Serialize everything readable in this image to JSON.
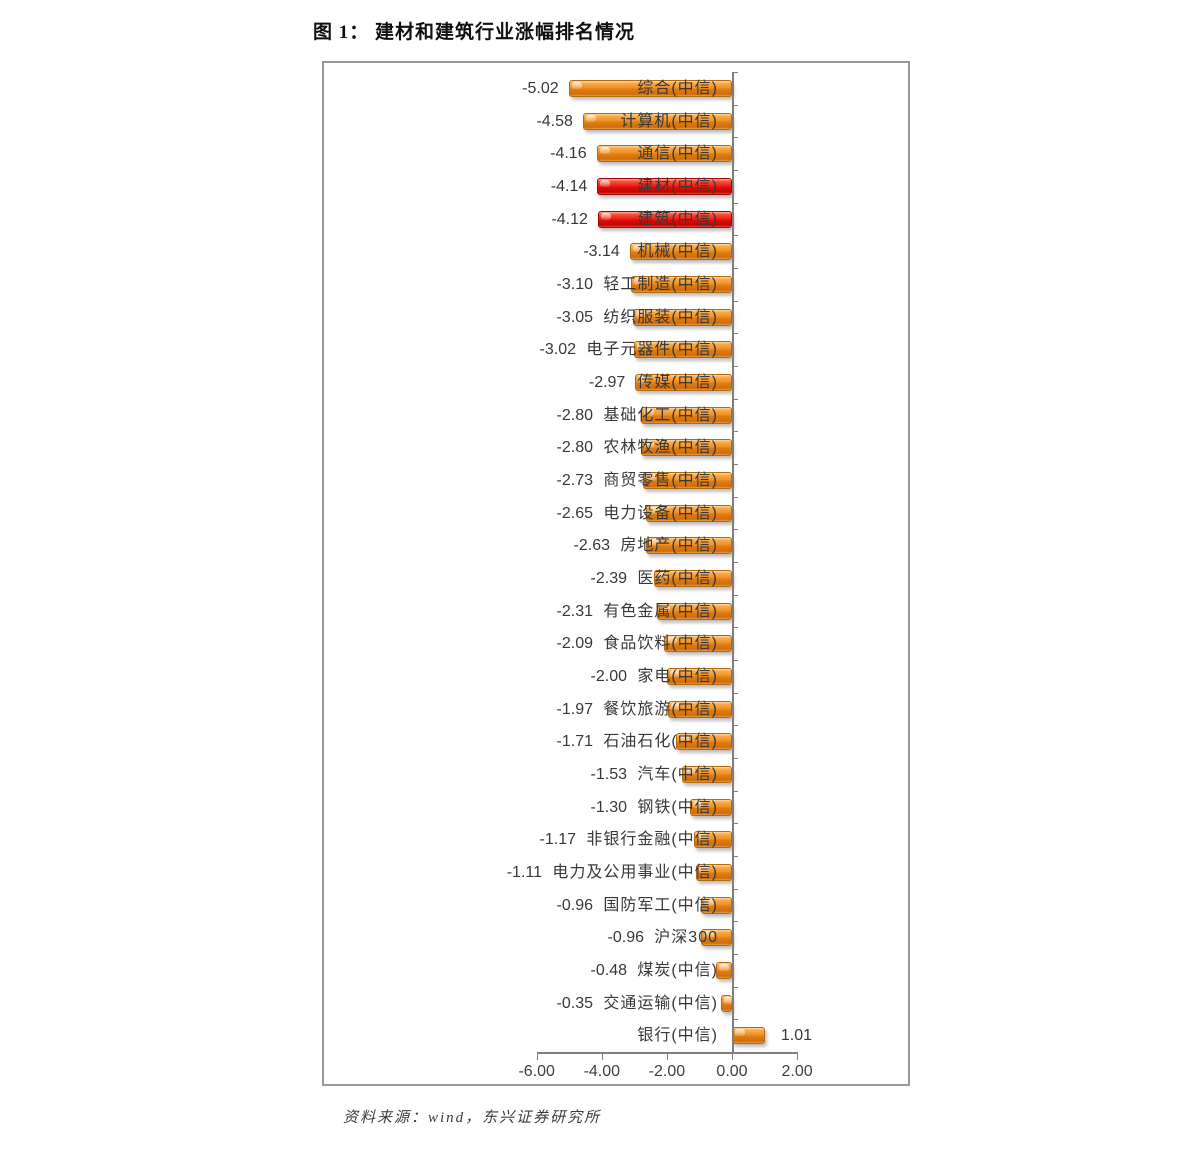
{
  "figure": {
    "title": "图 1：  建材和建筑行业涨幅排名情况",
    "source": "资料来源：wind，东兴证券研究所"
  },
  "chart_data": {
    "type": "bar",
    "orientation": "horizontal",
    "title": "图 1：  建材和建筑行业涨幅排名情况",
    "categories": [
      "综合(中信)",
      "计算机(中信)",
      "通信(中信)",
      "建材(中信)",
      "建筑(中信)",
      "机械(中信)",
      "轻工制造(中信)",
      "纺织服装(中信)",
      "电子元器件(中信)",
      "传媒(中信)",
      "基础化工(中信)",
      "农林牧渔(中信)",
      "商贸零售(中信)",
      "电力设备(中信)",
      "房地产(中信)",
      "医药(中信)",
      "有色金属(中信)",
      "食品饮料(中信)",
      "家电(中信)",
      "餐饮旅游(中信)",
      "石油石化(中信)",
      "汽车(中信)",
      "钢铁(中信)",
      "非银行金融(中信)",
      "电力及公用事业(中信)",
      "国防军工(中信)",
      "沪深300",
      "煤炭(中信)",
      "交通运输(中信)",
      "银行(中信)"
    ],
    "values": [
      -5.02,
      -4.58,
      -4.16,
      -4.14,
      -4.12,
      -3.14,
      -3.1,
      -3.05,
      -3.02,
      -2.97,
      -2.8,
      -2.8,
      -2.73,
      -2.65,
      -2.63,
      -2.39,
      -2.31,
      -2.09,
      -2.0,
      -1.97,
      -1.71,
      -1.53,
      -1.3,
      -1.17,
      -1.11,
      -0.96,
      -0.96,
      -0.48,
      -0.35,
      1.01
    ],
    "highlight_categories": [
      "建材(中信)",
      "建筑(中信)"
    ],
    "bar_color": "#EF9026",
    "highlight_color": "#DC0D08",
    "label_color": "#383838",
    "axis_color": "#7F7F7F",
    "axis_ticks": [
      -6,
      -4,
      -2,
      0,
      2
    ],
    "axis_tick_labels": [
      "-6.00",
      "-4.00",
      "-2.00",
      "0.00",
      "2.00"
    ],
    "xlim": [
      -6,
      2
    ],
    "grid": "off",
    "legend": "none",
    "value_decimals": 2
  }
}
